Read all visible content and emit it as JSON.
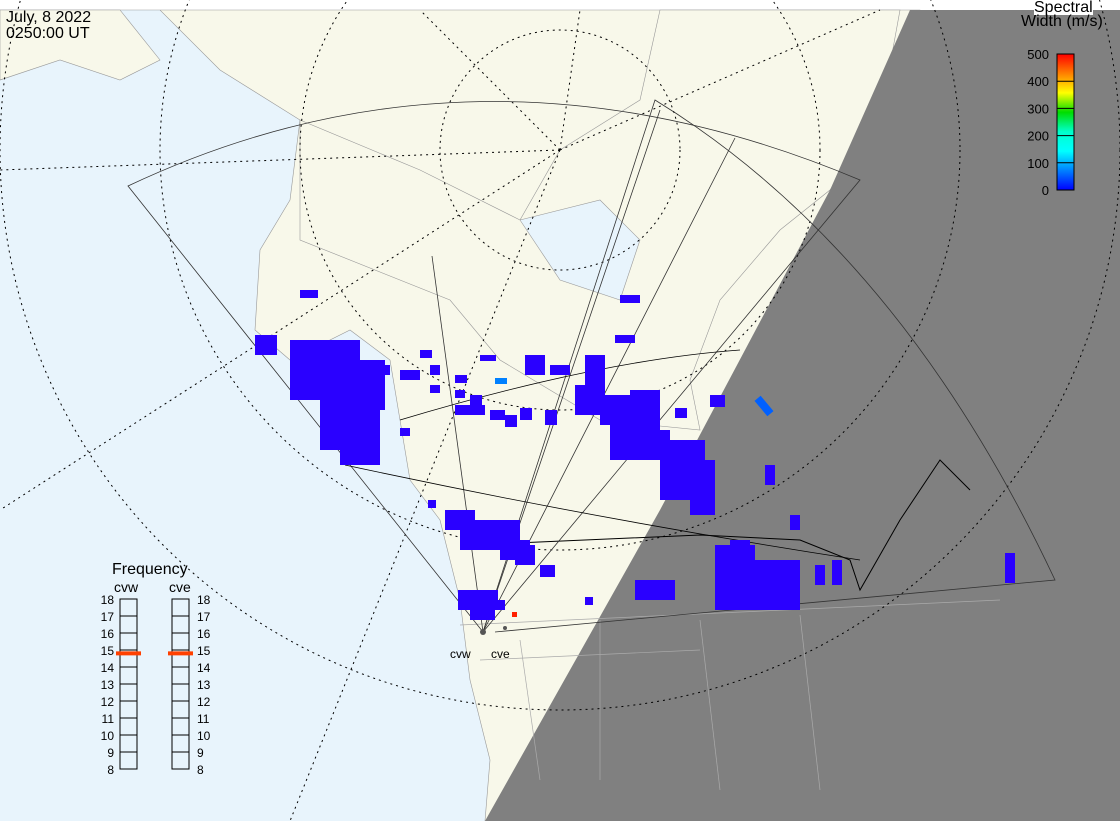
{
  "header": {
    "date": "July, 8 2022",
    "time": "0250:00 UT"
  },
  "colorbar": {
    "title_line1": "Spectral",
    "title_line2": "Width (m/s)",
    "ticks": [
      "500",
      "400",
      "300",
      "200",
      "100",
      "0"
    ],
    "range": [
      0,
      500
    ],
    "colors": [
      "#ff0000",
      "#ff8000",
      "#ffff00",
      "#00dd00",
      "#00ffcc",
      "#00ffff",
      "#0080ff",
      "#0000ff"
    ]
  },
  "frequency": {
    "title": "Frequency",
    "unit_range": [
      8,
      18
    ],
    "ticks": [
      "18",
      "17",
      "16",
      "15",
      "14",
      "13",
      "12",
      "11",
      "10",
      "9",
      "8"
    ],
    "radars": [
      {
        "name": "cvw",
        "value_mhz": 14.8
      },
      {
        "name": "cve",
        "value_mhz": 14.8
      }
    ],
    "marker_color": "#ff4000"
  },
  "map": {
    "radar_labels": [
      "cvw",
      "cve"
    ],
    "ocean_color": "#e8f4fc",
    "land_color": "#f8f8ea",
    "night_color": "#808080",
    "echo_color": "#2a00ff"
  }
}
